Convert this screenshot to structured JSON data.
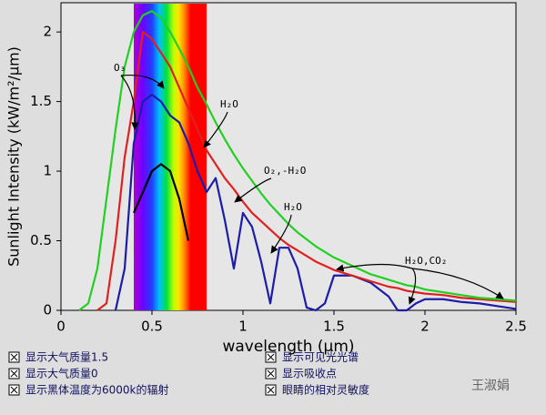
{
  "chart_data": {
    "type": "line",
    "x_label": "wavelength (µm)",
    "y_label": "Sunlight Intensity (kW/m²/µm)",
    "x": [
      0.1,
      0.15,
      0.2,
      0.25,
      0.3,
      0.35,
      0.4,
      0.45,
      0.5,
      0.55,
      0.6,
      0.65,
      0.7,
      0.75,
      0.8,
      0.85,
      0.9,
      0.95,
      1.0,
      1.05,
      1.1,
      1.15,
      1.2,
      1.25,
      1.3,
      1.35,
      1.4,
      1.45,
      1.5,
      1.6,
      1.7,
      1.8,
      1.85,
      1.9,
      1.95,
      2.0,
      2.1,
      2.2,
      2.3,
      2.4,
      2.5
    ],
    "series": [
      {
        "name": "显示大气质量1.5",
        "color": "#1c1ca8",
        "values": [
          null,
          null,
          null,
          null,
          0,
          0.3,
          1.2,
          1.5,
          1.55,
          1.5,
          1.4,
          1.35,
          1.2,
          1.0,
          0.85,
          0.95,
          0.65,
          0.3,
          0.7,
          0.6,
          0.35,
          0.05,
          0.45,
          0.45,
          0.3,
          0.02,
          0,
          0.05,
          0.25,
          0.25,
          0.2,
          0.1,
          0,
          0,
          0.05,
          0.08,
          0.08,
          0.06,
          0.05,
          0.03,
          0.01
        ]
      },
      {
        "name": "显示大气质量0",
        "color": "#e02020",
        "values": [
          null,
          null,
          0,
          0.05,
          0.5,
          1.1,
          1.5,
          2.0,
          1.95,
          1.85,
          1.75,
          1.6,
          1.45,
          1.3,
          1.15,
          1.05,
          0.95,
          0.87,
          0.78,
          0.7,
          0.64,
          0.58,
          0.52,
          0.47,
          0.43,
          0.39,
          0.35,
          0.32,
          0.29,
          0.25,
          0.21,
          0.17,
          0.16,
          0.14,
          0.13,
          0.12,
          0.11,
          0.09,
          0.08,
          0.07,
          0.06
        ]
      },
      {
        "name": "显示黑体温度为6000k的辐射",
        "color": "#22d022",
        "values": [
          0,
          0.05,
          0.3,
          0.8,
          1.3,
          1.75,
          2.0,
          2.12,
          2.15,
          2.1,
          2.0,
          1.88,
          1.75,
          1.6,
          1.48,
          1.35,
          1.23,
          1.12,
          1.02,
          0.93,
          0.84,
          0.76,
          0.69,
          0.62,
          0.56,
          0.51,
          0.46,
          0.42,
          0.38,
          0.32,
          0.26,
          0.22,
          0.2,
          0.18,
          0.17,
          0.15,
          0.13,
          0.11,
          0.09,
          0.08,
          0.07
        ]
      },
      {
        "name": "眼睛的相对灵敏度",
        "color": "#000000",
        "values": [
          null,
          null,
          null,
          null,
          null,
          null,
          0.7,
          0.85,
          1.0,
          1.05,
          1.0,
          0.8,
          0.5,
          null,
          null,
          null,
          null,
          null,
          null,
          null,
          null,
          null,
          null,
          null,
          null,
          null,
          null,
          null,
          null,
          null,
          null,
          null,
          null,
          null,
          null,
          null,
          null,
          null,
          null,
          null,
          null
        ]
      }
    ],
    "options": [
      "显示可见光光谱",
      "显示吸收点"
    ],
    "visible_band": [
      0.4,
      0.8
    ],
    "annotations": [
      "O₃",
      "H₂O",
      "O₂,-H₂O",
      "H₂O",
      "H₂O,CO₂"
    ],
    "xlim": [
      0,
      2.5
    ],
    "xticks": [
      0,
      0.5,
      1,
      1.5,
      2,
      2.5
    ],
    "ylim": [
      0,
      2.21
    ],
    "yticks": [
      0,
      0.5,
      1,
      1.5,
      2
    ],
    "grid": false,
    "watermark": "王淑娟"
  }
}
